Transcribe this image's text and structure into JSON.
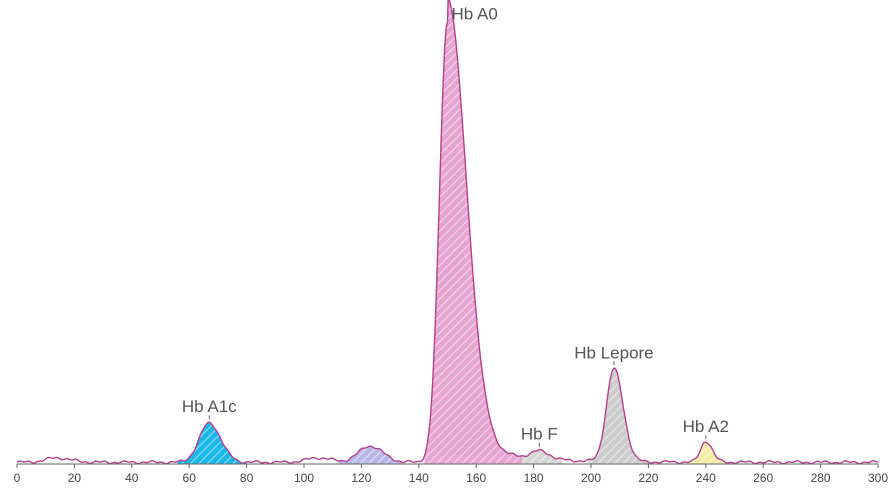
{
  "chart_data": {
    "type": "area",
    "xlim": [
      0,
      300
    ],
    "x_ticks": [
      "0",
      "20",
      "40",
      "60",
      "80",
      "100",
      "120",
      "140",
      "160",
      "180",
      "200",
      "220",
      "240",
      "260",
      "280",
      "300"
    ],
    "grid": false,
    "peaks": [
      {
        "label": "Hb A1c",
        "x": 67,
        "height": 0.089,
        "color": "#1ab7ea",
        "fill_range": [
          56,
          80
        ]
      },
      {
        "label": "Hb A0",
        "x": 150,
        "height": 1.0,
        "color": "#e6a6d1",
        "fill_range": [
          142,
          180
        ]
      },
      {
        "label": "Hb F",
        "x": 182,
        "height": 0.018,
        "color": "#d6d6d6",
        "fill_range": [
          176,
          190
        ]
      },
      {
        "label": "Hb Lepore",
        "x": 208,
        "height": 0.211,
        "color": "#cccccc",
        "fill_range": [
          199,
          220
        ]
      },
      {
        "label": "Hb A2",
        "x": 240,
        "height": 0.048,
        "color": "#f5eca8",
        "fill_range": [
          234,
          246
        ]
      }
    ],
    "minor_peaks": [
      {
        "x": 14,
        "height": 0.01
      },
      {
        "x": 123,
        "height": 0.037,
        "fill_range": [
          112,
          135
        ],
        "color": "#b8b8e8"
      },
      {
        "x": 105,
        "height": 0.01
      }
    ],
    "trace_color": "#b5408f"
  }
}
